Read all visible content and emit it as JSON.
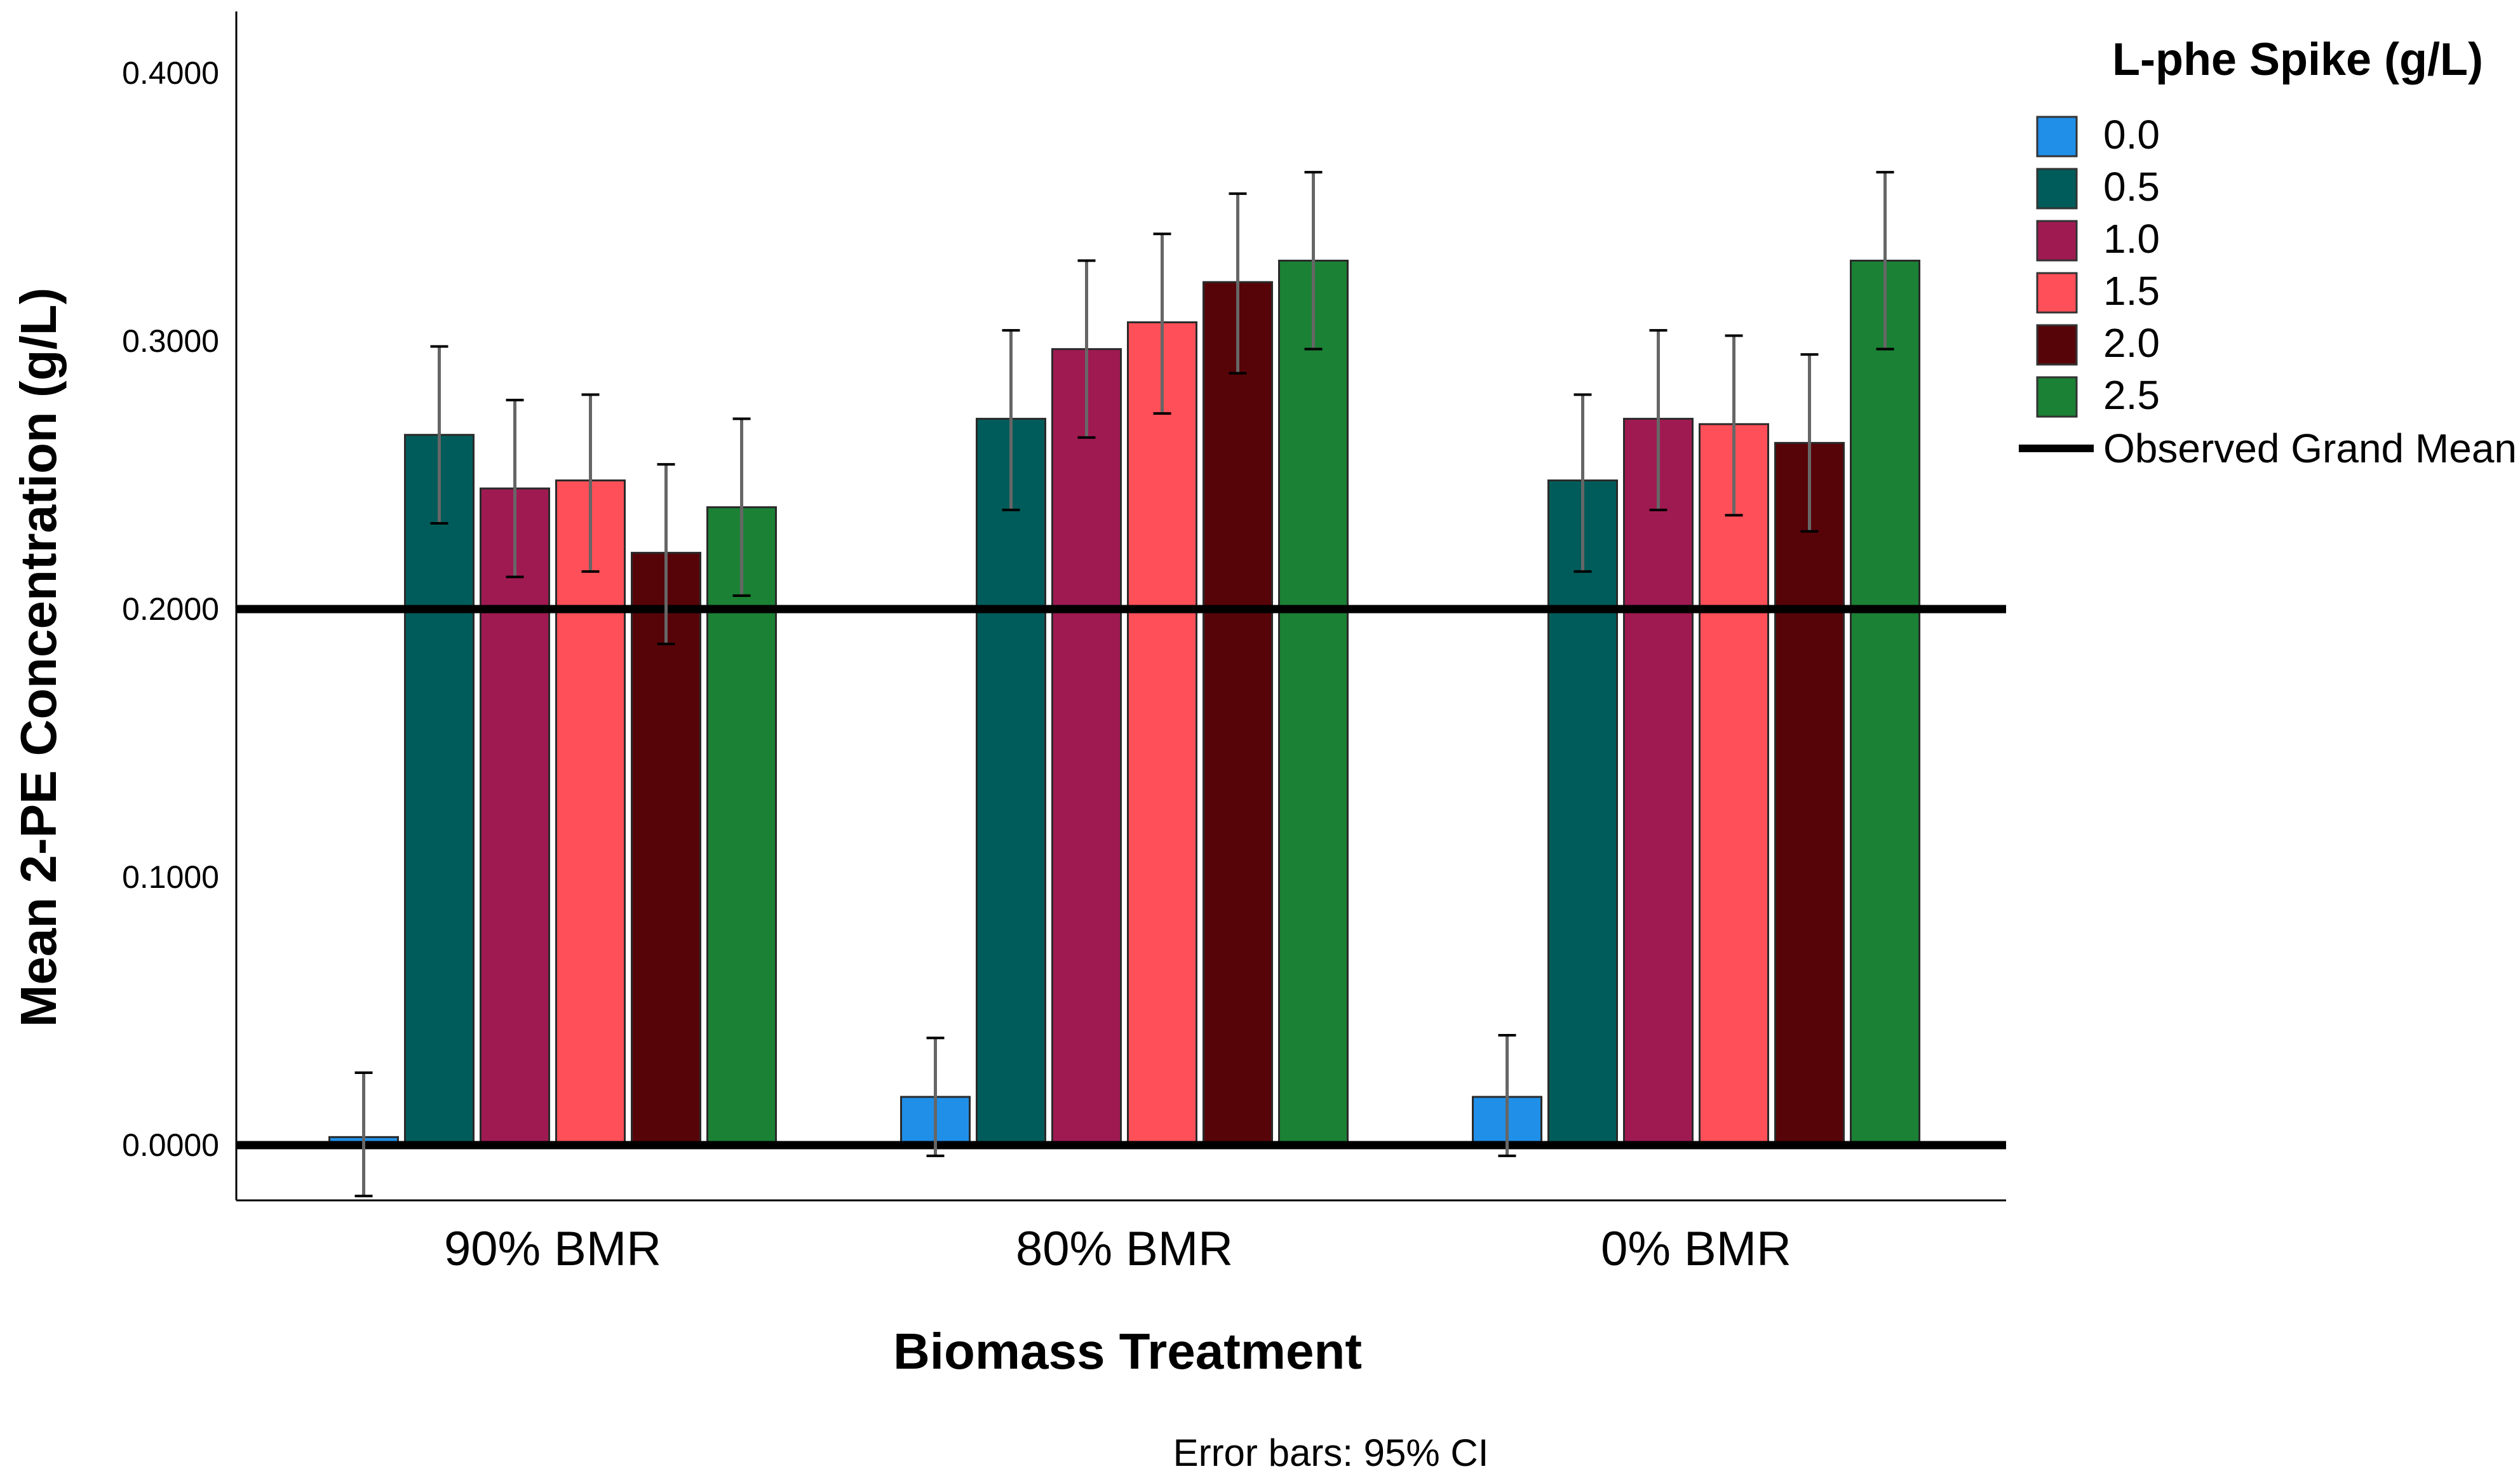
{
  "chart_data": {
    "type": "bar",
    "xlabel": "Biomass Treatment",
    "ylabel": "Mean 2-PE Concentration (g/L)",
    "ylim": [
      -0.02,
      0.42
    ],
    "yticks": [
      "0.0000",
      "0.1000",
      "0.2000",
      "0.3000",
      "0.4000"
    ],
    "ytick_values": [
      0.0,
      0.1,
      0.2,
      0.3,
      0.4
    ],
    "categories": [
      "90% BMR",
      "80% BMR",
      "0% BMR"
    ],
    "legend": {
      "title": "L-phe Spike (g/L)",
      "position": "right"
    },
    "grid": false,
    "series": [
      {
        "name": "0.0",
        "color": "#1f8fe8",
        "values": [
          0.003,
          0.018,
          0.018
        ],
        "ci_low": [
          -0.019,
          -0.004,
          -0.004
        ],
        "ci_high": [
          0.027,
          0.04,
          0.041
        ]
      },
      {
        "name": "0.5",
        "color": "#005c5a",
        "values": [
          0.265,
          0.271,
          0.248
        ],
        "ci_low": [
          0.232,
          0.237,
          0.214
        ],
        "ci_high": [
          0.298,
          0.304,
          0.28
        ]
      },
      {
        "name": "1.0",
        "color": "#a01a52",
        "values": [
          0.245,
          0.297,
          0.271
        ],
        "ci_low": [
          0.212,
          0.264,
          0.237
        ],
        "ci_high": [
          0.278,
          0.33,
          0.304
        ]
      },
      {
        "name": "1.5",
        "color": "#ff4f58",
        "values": [
          0.248,
          0.307,
          0.269
        ],
        "ci_low": [
          0.214,
          0.273,
          0.235
        ],
        "ci_high": [
          0.28,
          0.34,
          0.302
        ]
      },
      {
        "name": "2.0",
        "color": "#570409",
        "values": [
          0.221,
          0.322,
          0.262
        ],
        "ci_low": [
          0.187,
          0.288,
          0.229
        ],
        "ci_high": [
          0.254,
          0.355,
          0.295
        ]
      },
      {
        "name": "2.5",
        "color": "#1b8135",
        "values": [
          0.238,
          0.33,
          0.33
        ],
        "ci_low": [
          0.205,
          0.297,
          0.297
        ],
        "ci_high": [
          0.271,
          0.363,
          0.363
        ]
      }
    ],
    "reference_lines": [
      {
        "name": "Observed Grand Mean",
        "value": 0.2,
        "color": "#000000"
      },
      {
        "name": "",
        "value": 0.0,
        "color": "#000000"
      }
    ],
    "footnote": "Error bars: 95% CI"
  }
}
